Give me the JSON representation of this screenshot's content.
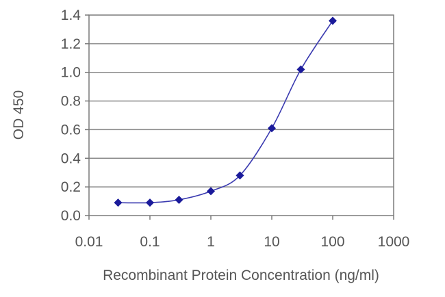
{
  "chart_data": {
    "type": "scatter",
    "xlabel": "Recombinant Protein Concentration (ng/ml)",
    "ylabel": "OD 450",
    "x_scale": "log",
    "xlim": [
      0.01,
      1000
    ],
    "ylim": [
      0.0,
      1.4
    ],
    "x_ticks": [
      0.01,
      0.1,
      1,
      10,
      100,
      1000
    ],
    "x_tick_labels": [
      "0.01",
      "0.1",
      "1",
      "10",
      "100",
      "1000"
    ],
    "y_ticks": [
      0.0,
      0.2,
      0.4,
      0.6,
      0.8,
      1.0,
      1.2,
      1.4
    ],
    "y_tick_labels": [
      "0.0",
      "0.2",
      "0.4",
      "0.6",
      "0.8",
      "1.0",
      "1.2",
      "1.4"
    ],
    "grid": "horizontal",
    "series": [
      {
        "x": [
          0.03,
          0.1,
          0.3,
          1,
          3,
          10,
          30,
          100
        ],
        "y": [
          0.09,
          0.09,
          0.11,
          0.17,
          0.28,
          0.61,
          1.02,
          1.36
        ],
        "color": "#1a1a9a",
        "marker": "diamond",
        "line": "smooth"
      }
    ]
  }
}
